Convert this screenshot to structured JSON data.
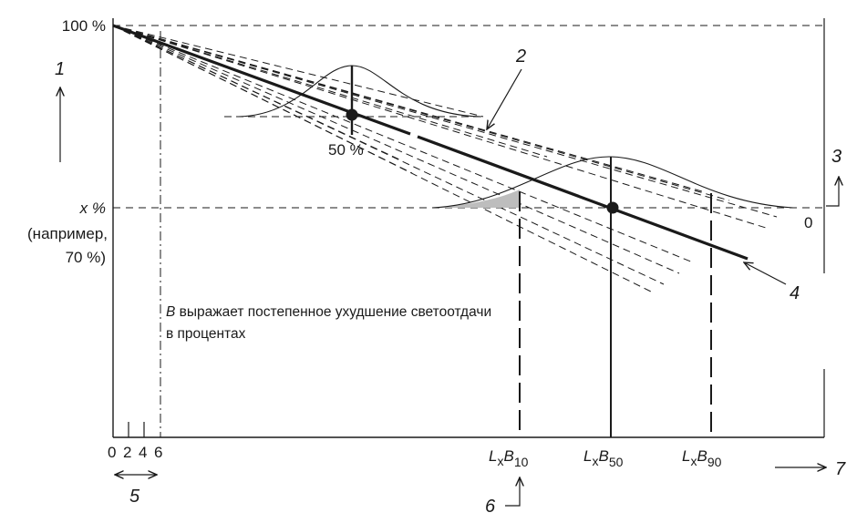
{
  "y_axis": {
    "top_label": "100 %",
    "x_label": "x %",
    "example_line1": "(например,",
    "example_line2": "70 %)"
  },
  "curves": {
    "mid_label": "50 %",
    "zero_label": "0"
  },
  "note": {
    "b_letter": "B",
    "line1_rest": " выражает постепенное ухудшение светоотдачи",
    "line2": "в процентах"
  },
  "x_axis": {
    "ticks": [
      "0",
      "2",
      "4",
      "6"
    ],
    "lb_letter": "L",
    "lb_x": "x",
    "lb_b": "B",
    "lb10_sub": "10",
    "lb50_sub": "50",
    "lb90_sub": "90"
  },
  "callouts": [
    "1",
    "2",
    "3",
    "4",
    "5",
    "6",
    "7"
  ],
  "colors": {
    "ink": "#1a1a1a",
    "shade": "#bdbdbd"
  }
}
